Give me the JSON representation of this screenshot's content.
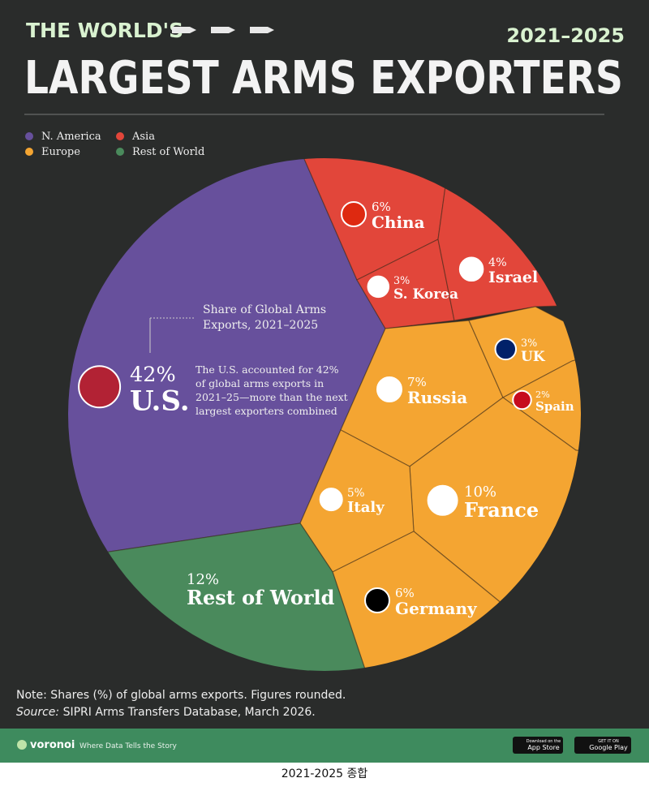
{
  "chart_data": {
    "type": "voronoi",
    "supertitle": "THE WORLD'S",
    "title": "LARGEST ARMS EXPORTERS",
    "subtitle": "2021–2025",
    "series": [
      {
        "name": "N. America",
        "color": "#67509c",
        "categories": [
          "U.S."
        ],
        "values": [
          42
        ],
        "value_labels": [
          "42%"
        ]
      },
      {
        "name": "Asia",
        "color": "#e2463a",
        "categories": [
          "China",
          "S. Korea",
          "Israel"
        ],
        "values": [
          6,
          3,
          4
        ],
        "value_labels": [
          "6%",
          "3%",
          "4%"
        ]
      },
      {
        "name": "Europe",
        "color": "#f4a532",
        "categories": [
          "Russia",
          "UK",
          "Spain",
          "France",
          "Italy",
          "Germany"
        ],
        "values": [
          7,
          3,
          2,
          10,
          5,
          6
        ],
        "value_labels": [
          "7%",
          "3%",
          "2%",
          "10%",
          "5%",
          "6%"
        ]
      },
      {
        "name": "Rest of World",
        "color": "#4a8a5c",
        "categories": [
          "Rest of World"
        ],
        "values": [
          12
        ],
        "value_labels": [
          "12%"
        ]
      }
    ],
    "annotation": {
      "title": "Share of Global Arms Exports, 2021–2025",
      "text": "The U.S. accounted for 42% of global arms exports in 2021–25—more than the next largest exporters combined"
    },
    "note": "Note: Shares (%) of global arms exports. Figures rounded.",
    "source_label": "Source:",
    "source": "SIPRI Arms Transfers Database, March 2026."
  },
  "footer": {
    "brand": "voronoi",
    "tagline": "Where Data Tells the Story",
    "app_store_small": "Download on the",
    "app_store": "App Store",
    "google_small": "GET IT ON",
    "google": "Google Play"
  },
  "caption": "2021-2025 종합"
}
